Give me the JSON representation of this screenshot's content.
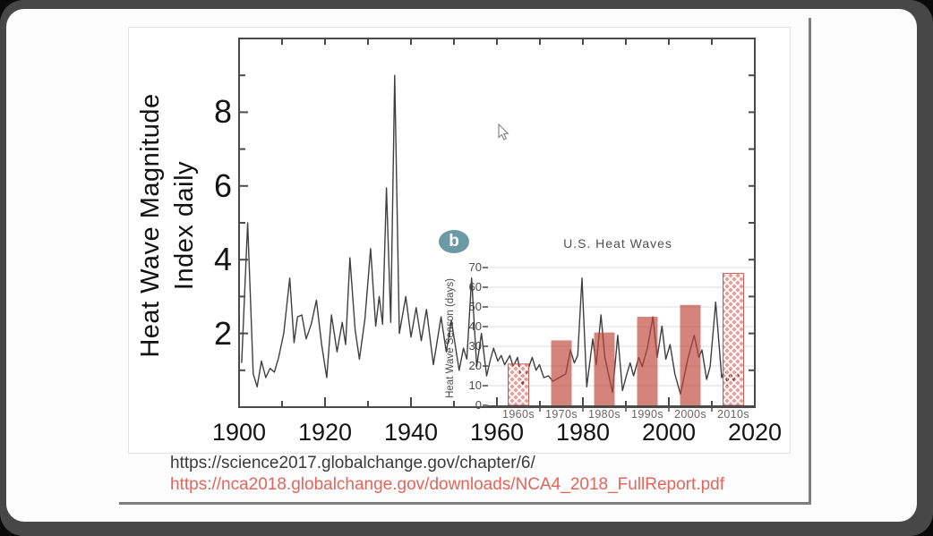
{
  "colors": {
    "bar_red": "rgba(192,68,56,0.66)",
    "bar_red_solid": "#c04438",
    "hatch_bg": "rgba(192,68,56,0.5)",
    "line_gray": "#3f3f3f",
    "axis_gray": "#4a4a4a",
    "badge_teal": "#6b9aa4",
    "url_red": "#e3655a",
    "url_black": "#3a3a3a"
  },
  "slide": {
    "ylabel_line1": "Heat Wave Magnitude",
    "ylabel_line2": "Index daily",
    "links": [
      {
        "text": "https://science2017.globalchange.gov/chapter/6/"
      },
      {
        "text": "https://nca2018.globalchange.gov/downloads/NCA4_2018_FullReport.pdf"
      }
    ]
  },
  "chart_data": [
    {
      "type": "line",
      "title": "",
      "ylabel": "Heat Wave Magnitude Index daily",
      "xlim": [
        1900,
        2020
      ],
      "ylim": [
        0,
        10
      ],
      "x_ticks": [
        1900,
        1920,
        1940,
        1960,
        1980,
        2000,
        2020
      ],
      "x_minor_tick_step": 10,
      "y_ticks": [
        2,
        4,
        6,
        8
      ],
      "y_minor_ticks": [
        1,
        3,
        5,
        7,
        9
      ],
      "grid": false,
      "series": [
        {
          "name": "Heat Wave Magnitude Index daily",
          "points": [
            [
              1900.6,
              1.2
            ],
            [
              1902.0,
              5.0
            ],
            [
              1903.3,
              0.9
            ],
            [
              1904.2,
              0.55
            ],
            [
              1905.2,
              1.25
            ],
            [
              1906.2,
              0.8
            ],
            [
              1907.2,
              1.05
            ],
            [
              1908.2,
              0.95
            ],
            [
              1909.2,
              1.35
            ],
            [
              1910.4,
              2.0
            ],
            [
              1911.8,
              3.5
            ],
            [
              1912.8,
              1.75
            ],
            [
              1913.6,
              2.45
            ],
            [
              1914.6,
              2.5
            ],
            [
              1915.6,
              1.85
            ],
            [
              1916.8,
              2.25
            ],
            [
              1918.0,
              2.9
            ],
            [
              1919.2,
              1.7
            ],
            [
              1920.4,
              0.8
            ],
            [
              1921.5,
              2.5
            ],
            [
              1922.8,
              1.5
            ],
            [
              1924.0,
              2.3
            ],
            [
              1924.8,
              1.7
            ],
            [
              1925.8,
              4.05
            ],
            [
              1927.0,
              2.1
            ],
            [
              1928.0,
              1.3
            ],
            [
              1929.3,
              2.4
            ],
            [
              1930.6,
              4.3
            ],
            [
              1931.8,
              2.2
            ],
            [
              1932.6,
              3.0
            ],
            [
              1933.4,
              2.25
            ],
            [
              1934.3,
              5.95
            ],
            [
              1935.3,
              2.3
            ],
            [
              1936.2,
              9.0
            ],
            [
              1937.3,
              2.0
            ],
            [
              1938.8,
              3.0
            ],
            [
              1940.0,
              1.9
            ],
            [
              1941.2,
              2.7
            ],
            [
              1942.4,
              1.8
            ],
            [
              1943.6,
              2.65
            ],
            [
              1945.2,
              1.15
            ],
            [
              1947.0,
              2.45
            ],
            [
              1948.2,
              1.5
            ],
            [
              1949.4,
              2.35
            ],
            [
              1951.2,
              1.0
            ],
            [
              1952.2,
              1.6
            ],
            [
              1953.0,
              1.3
            ],
            [
              1954.1,
              3.5
            ],
            [
              1955.3,
              1.1
            ],
            [
              1956.4,
              2.0
            ],
            [
              1957.6,
              0.85
            ],
            [
              1958.4,
              1.25
            ],
            [
              1959.2,
              1.6
            ],
            [
              1960.2,
              1.25
            ],
            [
              1961.0,
              1.4
            ],
            [
              1961.8,
              1.15
            ],
            [
              1963.0,
              1.4
            ],
            [
              1963.8,
              1.1
            ],
            [
              1964.8,
              1.35
            ],
            [
              1965.9,
              0.6
            ],
            [
              1967.0,
              0.95
            ],
            [
              1968.2,
              1.35
            ],
            [
              1969.1,
              1.0
            ],
            [
              1969.9,
              1.15
            ],
            [
              1970.9,
              0.8
            ],
            [
              1972.0,
              0.85
            ],
            [
              1973.0,
              0.7
            ],
            [
              1974.5,
              0.8
            ],
            [
              1976.0,
              0.9
            ],
            [
              1977.1,
              1.55
            ],
            [
              1978.0,
              1.2
            ],
            [
              1978.8,
              1.4
            ],
            [
              1979.8,
              3.5
            ],
            [
              1980.9,
              0.55
            ],
            [
              1982.3,
              1.85
            ],
            [
              1983.1,
              1.15
            ],
            [
              1984.2,
              2.5
            ],
            [
              1985.1,
              1.35
            ],
            [
              1986.9,
              0.4
            ],
            [
              1988.1,
              1.95
            ],
            [
              1989.2,
              0.45
            ],
            [
              1990.1,
              0.85
            ],
            [
              1991.0,
              1.2
            ],
            [
              1991.8,
              0.85
            ],
            [
              1993.0,
              1.35
            ],
            [
              1993.8,
              1.1
            ],
            [
              1995.0,
              1.6
            ],
            [
              1996.3,
              2.45
            ],
            [
              1997.3,
              1.35
            ],
            [
              1998.4,
              2.2
            ],
            [
              1999.3,
              1.3
            ],
            [
              2000.3,
              1.7
            ],
            [
              2001.4,
              0.9
            ],
            [
              2002.7,
              0.35
            ],
            [
              2004.4,
              1.3
            ],
            [
              2005.9,
              1.95
            ],
            [
              2007.0,
              1.35
            ],
            [
              2007.7,
              1.55
            ],
            [
              2008.8,
              0.75
            ],
            [
              2009.6,
              1.1
            ],
            [
              2010.9,
              2.85
            ],
            [
              2012.3,
              0.8
            ],
            [
              2013.0,
              1.0
            ],
            [
              2013.6,
              0.6
            ],
            [
              2014.3,
              1.0
            ],
            [
              2015.0,
              0.7
            ],
            [
              2015.8,
              0.95
            ],
            [
              2016.5,
              0.8
            ]
          ]
        }
      ]
    },
    {
      "type": "bar",
      "title": "U.S. Heat Waves",
      "badge": "b",
      "ylabel": "Heat Wave Season (days)",
      "categories": [
        "1960s",
        "1970s",
        "1980s",
        "1990s",
        "2000s",
        "2010s"
      ],
      "values": [
        21,
        33,
        37,
        45,
        51,
        67
      ],
      "hatched": [
        true,
        false,
        false,
        false,
        false,
        true
      ],
      "ylim": [
        0,
        70
      ],
      "y_ticks": [
        0,
        10,
        20,
        30,
        40,
        50,
        60,
        70
      ],
      "grid": true,
      "legend": "none"
    }
  ]
}
